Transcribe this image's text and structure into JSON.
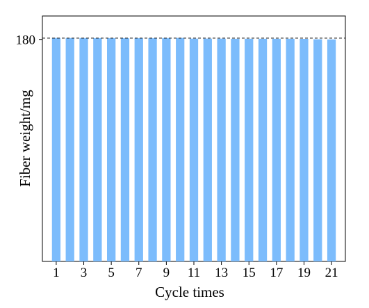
{
  "chart_data": {
    "type": "bar",
    "title": "",
    "xlabel": "Cycle times",
    "ylabel": "Fiber weight/mg",
    "categories": [
      1,
      2,
      3,
      4,
      5,
      6,
      7,
      8,
      9,
      10,
      11,
      12,
      13,
      14,
      15,
      16,
      17,
      18,
      19,
      20,
      21
    ],
    "x_tick_labels": [
      "1",
      "3",
      "5",
      "7",
      "9",
      "11",
      "13",
      "15",
      "17",
      "19",
      "21"
    ],
    "values": [
      181.2,
      181.1,
      181.1,
      181.0,
      181.0,
      181.0,
      181.0,
      181.0,
      181.1,
      181.2,
      180.6,
      180.6,
      180.6,
      180.5,
      180.5,
      180.5,
      180.5,
      180.5,
      180.4,
      180.1,
      180.0
    ],
    "y_ticks": [
      "180"
    ],
    "y_tick_values": [
      180
    ],
    "ylim": [
      0,
      199
    ],
    "reference_line": {
      "value": 181,
      "style": "dashed",
      "color": "#000000"
    },
    "bar_color": "#7cbcfc",
    "grid": false,
    "legend": "none"
  }
}
